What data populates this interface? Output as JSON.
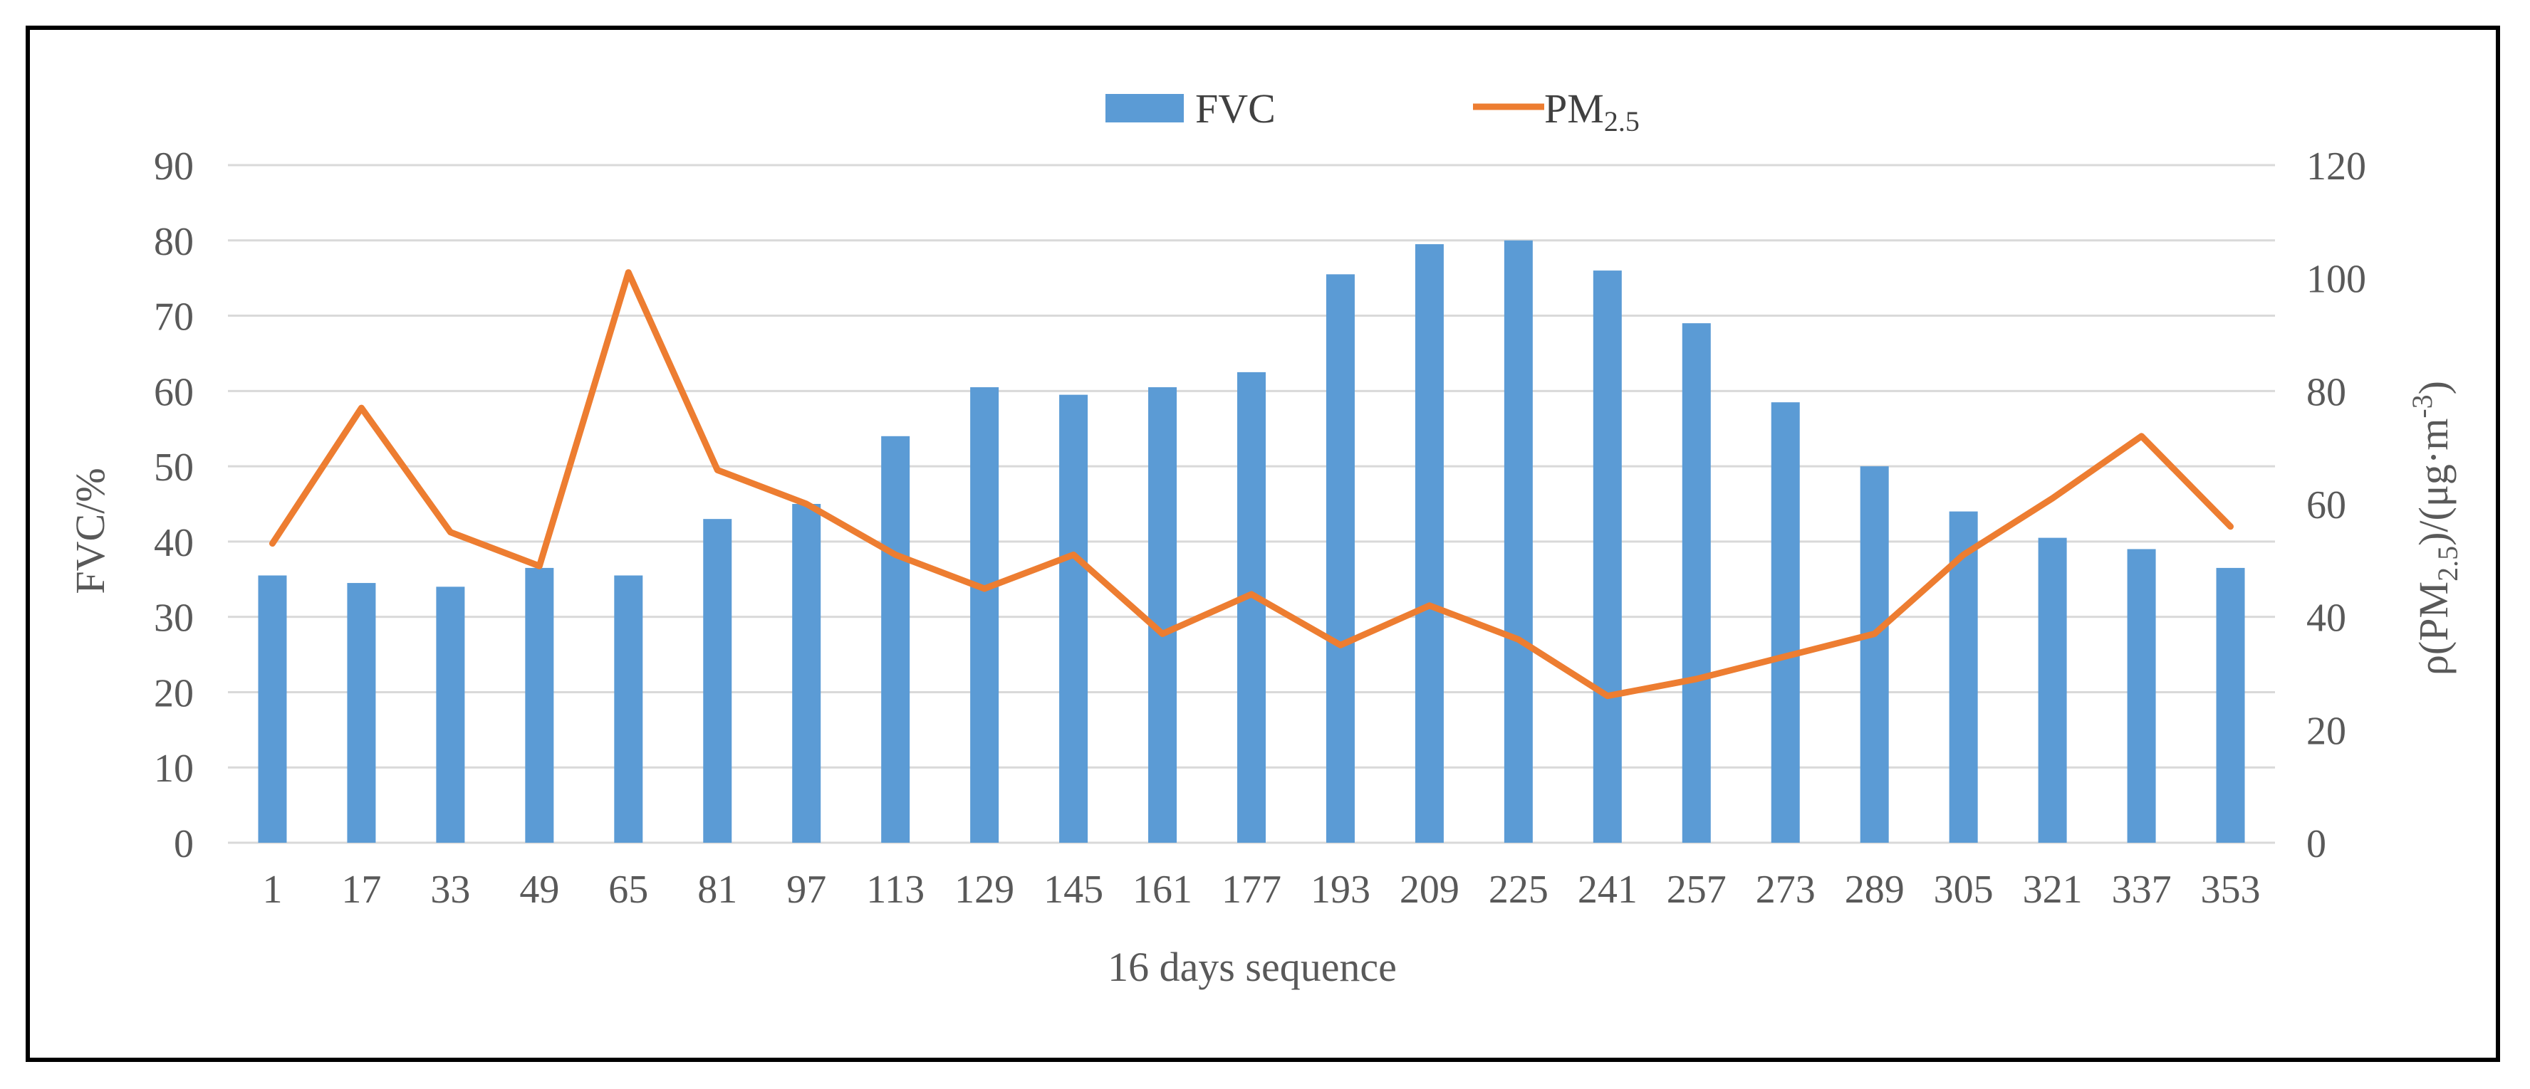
{
  "chart_data": {
    "type": "bar+line",
    "categories": [
      "1",
      "17",
      "33",
      "49",
      "65",
      "81",
      "97",
      "113",
      "129",
      "145",
      "161",
      "177",
      "193",
      "209",
      "225",
      "241",
      "257",
      "273",
      "289",
      "305",
      "321",
      "337",
      "353"
    ],
    "series": [
      {
        "name": "FVC",
        "type": "bar",
        "axis": "left",
        "color": "#5B9BD5",
        "values": [
          35.5,
          34.5,
          34,
          36.5,
          35.5,
          43,
          45,
          54,
          60.5,
          59.5,
          60.5,
          62.5,
          75.5,
          79.5,
          80,
          76,
          69,
          58.5,
          50,
          44,
          40.5,
          39,
          36.5
        ]
      },
      {
        "name": "PM",
        "name_sub": "2.5",
        "type": "line",
        "axis": "right",
        "color": "#ED7D31",
        "values": [
          53,
          77,
          55,
          49,
          101,
          66,
          60,
          51,
          45,
          51,
          37,
          44,
          35,
          42,
          36,
          26,
          29,
          33,
          37,
          51,
          61,
          72,
          56
        ]
      }
    ],
    "xlabel": "16 days sequence",
    "ylabel_left": "FVC/%",
    "ylabel_right": {
      "pre": "ρ(PM",
      "sub1": "2.5",
      "mid": ")/(μg·m",
      "sup": "-3",
      "post": ")"
    },
    "ylim_left": [
      0,
      90
    ],
    "yticks_left": [
      0,
      10,
      20,
      30,
      40,
      50,
      60,
      70,
      80,
      90
    ],
    "ylim_right": [
      0,
      120
    ],
    "yticks_right": [
      0,
      20,
      40,
      60,
      80,
      100,
      120
    ],
    "grid": true,
    "legend_position": "top-center"
  }
}
